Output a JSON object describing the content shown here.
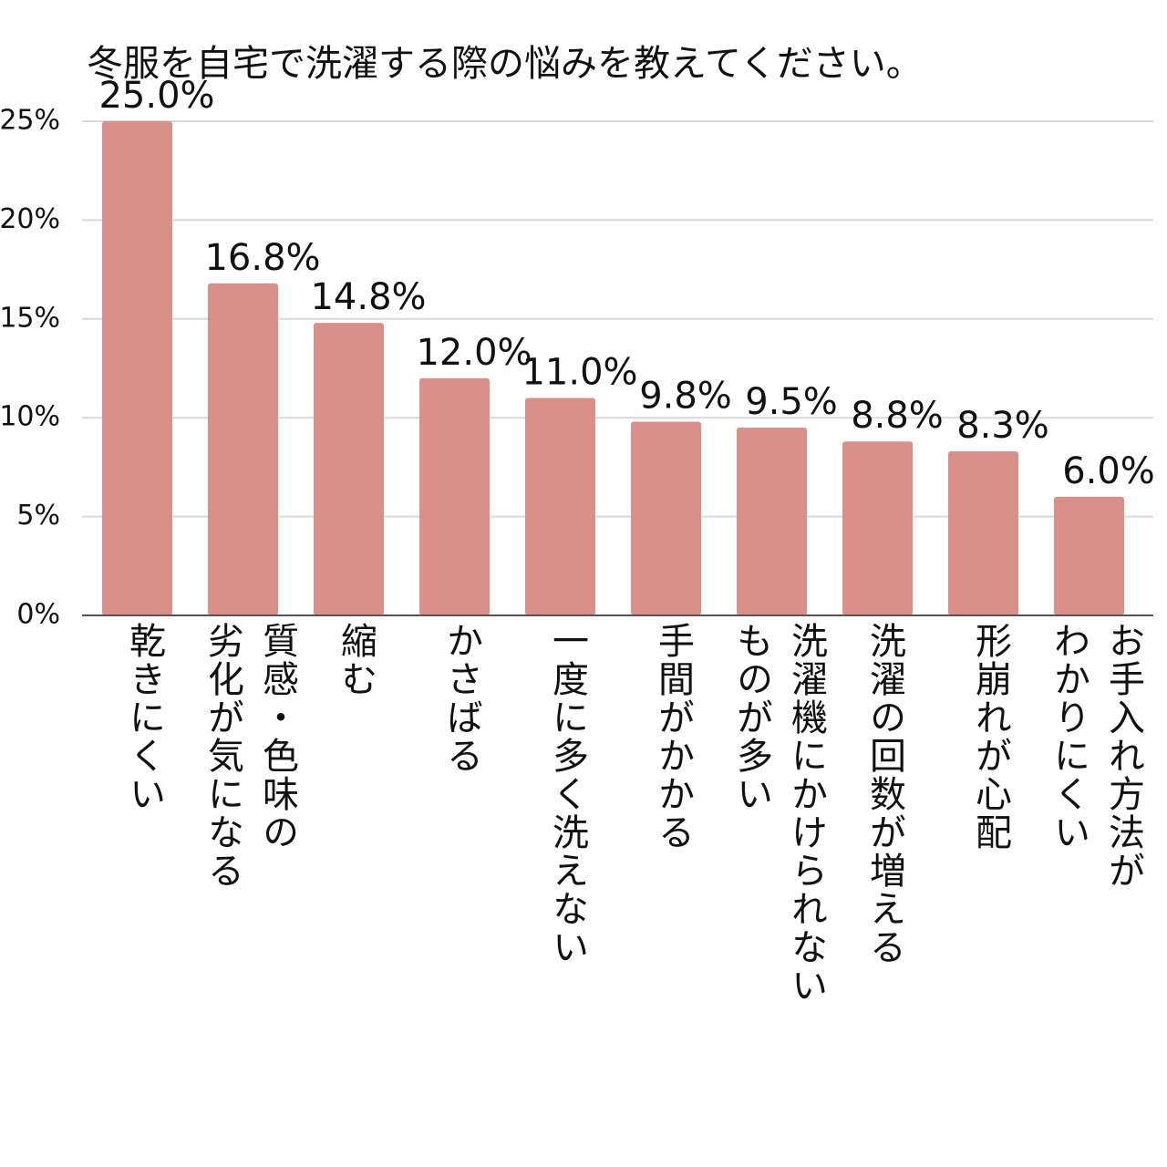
{
  "chart_data": {
    "type": "bar",
    "title": "冬服を自宅で洗濯する際の悩みを教えてください。",
    "categories": [
      "乾きにくい",
      "質感・色味の\n劣化が気になる",
      "縮む",
      "かさばる",
      "一度に多く洗えない",
      "手間がかかる",
      "洗濯機にかけられない\nものが多い",
      "洗濯の回数が増える",
      "形崩れが心配",
      "お手入れ方法が\nわかりにくい"
    ],
    "values": [
      25.0,
      16.8,
      14.8,
      12.0,
      11.0,
      9.8,
      9.5,
      8.8,
      8.3,
      6.0
    ],
    "value_labels": [
      "25.0%",
      "16.8%",
      "14.8%",
      "12.0%",
      "11.0%",
      "9.8%",
      "9.5%",
      "8.8%",
      "8.3%",
      "6.0%"
    ],
    "color": "#d9908a",
    "ylim": [
      0,
      25
    ],
    "yticks": [
      {
        "value": 0,
        "label": "0%"
      },
      {
        "value": 5,
        "label": "5%"
      },
      {
        "value": 10,
        "label": "10%"
      },
      {
        "value": 15,
        "label": "15%"
      },
      {
        "value": 20,
        "label": "20%"
      },
      {
        "value": 25,
        "label": "25%"
      }
    ],
    "grid": true
  }
}
